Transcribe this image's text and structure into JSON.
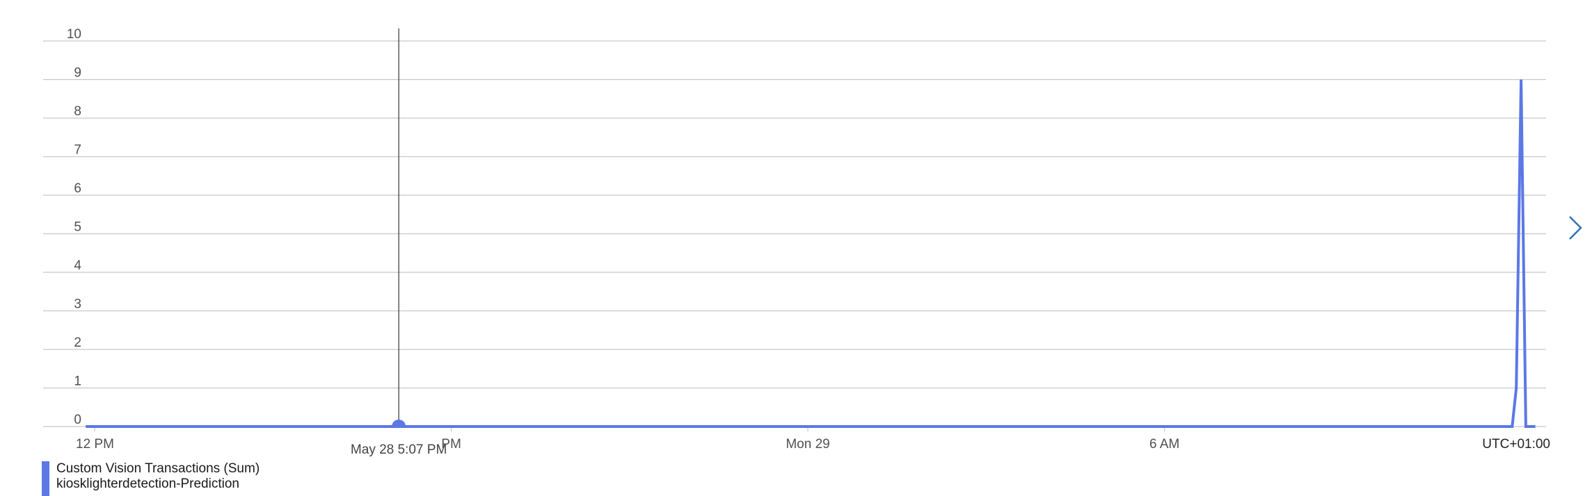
{
  "chart_data": {
    "type": "line",
    "title": "",
    "xlabel": "",
    "ylabel": "",
    "ylim": [
      0,
      10
    ],
    "y_ticks": [
      0,
      1,
      2,
      3,
      4,
      5,
      6,
      7,
      8,
      9,
      10
    ],
    "x_range_hours": [
      0,
      25.85
    ],
    "x_ticks": [
      {
        "label": "12 PM",
        "hour": 0
      },
      {
        "label": "PM",
        "hour": 6
      },
      {
        "label": "Mon 29",
        "hour": 12
      },
      {
        "label": "6 AM",
        "hour": 18
      }
    ],
    "timezone_label": "UTC+01:00",
    "cursor": {
      "label": "May 28 5:07 PM",
      "hour": 5.117,
      "value": 0
    },
    "series": [
      {
        "name": "Custom Vision Transactions (Sum)",
        "resource": "kiosklighterdetection-Prediction",
        "color": "#5b78e5",
        "points": [
          [
            -0.15,
            0
          ],
          [
            23.85,
            0
          ],
          [
            23.92,
            1
          ],
          [
            24.0,
            9
          ],
          [
            24.08,
            0
          ],
          [
            24.24,
            0
          ]
        ]
      }
    ]
  },
  "legend": {
    "title": "Custom Vision Transactions (Sum)",
    "subtitle": "kiosklighterdetection-Prediction",
    "color": "#5b78e5"
  },
  "nav": {
    "icon": "chevron-right-icon"
  }
}
